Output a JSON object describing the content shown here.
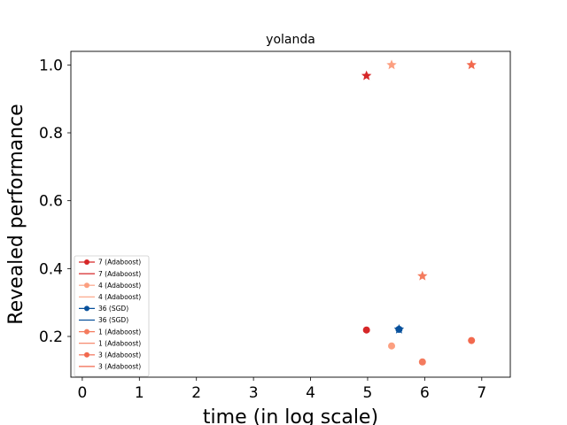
{
  "chart_data": {
    "type": "scatter",
    "title": "yolanda",
    "xlabel": "time (in log scale)",
    "ylabel": "Revealed performance",
    "xlim": [
      -0.2,
      7.5
    ],
    "ylim": [
      0.08,
      1.04
    ],
    "xticks": [
      0,
      1,
      2,
      3,
      4,
      5,
      6,
      7
    ],
    "yticks": [
      0.2,
      0.4,
      0.6,
      0.8,
      1.0
    ],
    "ytick_labels": [
      "0.2",
      "0.4",
      "0.6",
      "0.8",
      "1.0"
    ],
    "grid": false,
    "legend_position": "lower-left",
    "series": [
      {
        "name": "7 (Adaboost)",
        "color": "#d62728",
        "points": [
          {
            "x": 4.98,
            "y": 0.219
          }
        ],
        "best": [
          {
            "x": 4.98,
            "y": 0.968
          }
        ]
      },
      {
        "name": "4 (Adaboost)",
        "color": "#fc9f80",
        "points": [
          {
            "x": 5.42,
            "y": 0.172
          }
        ],
        "best": [
          {
            "x": 5.42,
            "y": 1.0
          }
        ]
      },
      {
        "name": "36 (SGD)",
        "color": "#08519c",
        "points": [
          {
            "x": 5.55,
            "y": 0.221
          }
        ],
        "best": [
          {
            "x": 5.55,
            "y": 0.221
          }
        ]
      },
      {
        "name": "1 (Adaboost)",
        "color": "#f47b5e",
        "points": [
          {
            "x": 5.96,
            "y": 0.125
          }
        ],
        "best": [
          {
            "x": 5.96,
            "y": 0.378
          }
        ]
      },
      {
        "name": "3 (Adaboost)",
        "color": "#f2694e",
        "points": [
          {
            "x": 6.82,
            "y": 0.188
          }
        ],
        "best": [
          {
            "x": 6.82,
            "y": 1.0
          }
        ]
      }
    ],
    "legend": [
      {
        "label": "7 (Adaboost)",
        "marker": "circle",
        "color": "#d62728"
      },
      {
        "label": "7 (Adaboost)",
        "marker": "line",
        "color": "#d62728"
      },
      {
        "label": "4 (Adaboost)",
        "marker": "circle",
        "color": "#fc9f80"
      },
      {
        "label": "4 (Adaboost)",
        "marker": "line",
        "color": "#fc9f80"
      },
      {
        "label": "36 (SGD)",
        "marker": "circle",
        "color": "#08519c"
      },
      {
        "label": "36 (SGD)",
        "marker": "line",
        "color": "#08519c"
      },
      {
        "label": "1 (Adaboost)",
        "marker": "circle",
        "color": "#f47b5e"
      },
      {
        "label": "1 (Adaboost)",
        "marker": "line",
        "color": "#f47b5e"
      },
      {
        "label": "3 (Adaboost)",
        "marker": "circle",
        "color": "#f2694e"
      },
      {
        "label": "3 (Adaboost)",
        "marker": "line",
        "color": "#f2694e"
      }
    ]
  }
}
